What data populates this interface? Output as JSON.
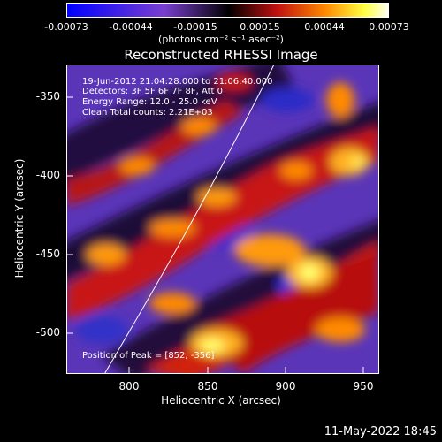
{
  "colorbar": {
    "ticks": [
      "-0.00073",
      "-0.00044",
      "-0.00015",
      "0.00015",
      "0.00044",
      "0.00073"
    ],
    "units": "(photons cm⁻² s⁻¹ asec⁻²)",
    "colors": [
      "#0000ff",
      "#7a3fd0",
      "#000000",
      "#c01010",
      "#ff8a00",
      "#ffff40",
      "#ffffff"
    ]
  },
  "title": "Reconstructed RHESSI Image",
  "axes": {
    "ylabel": "Heliocentric Y (arcsec)",
    "xlabel": "Heliocentric X (arcsec)",
    "yticks": [
      "-350",
      "-400",
      "-450",
      "-500"
    ],
    "xticks": [
      "800",
      "850",
      "900",
      "950"
    ]
  },
  "annotations": {
    "line1": "19-Jun-2012 21:04:28.000 to 21:06:40.000",
    "line2": "Detectors: 3F 5F 6F 7F 8F, Att 0",
    "line3": "Energy Range: 12.0 - 25.0 keV",
    "line4": "Clean      Total counts: 2.21E+03",
    "peak": "Position of Peak = [852, -356]"
  },
  "timestamp": "11-May-2022 18:45"
}
